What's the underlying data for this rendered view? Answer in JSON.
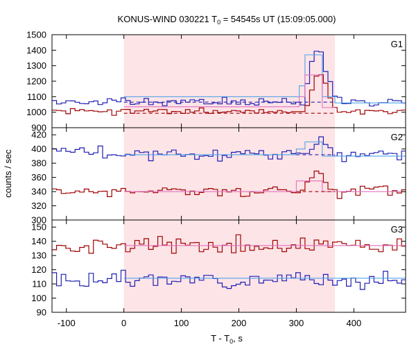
{
  "chart_data": {
    "type": "line",
    "title_main": "KONUS-WIND 030221 T",
    "title_sub": "0",
    "title_rest": " = 54545s UT (15:09:05.000)",
    "xlabel_main": "T - T",
    "xlabel_sub": "0",
    "xlabel_rest": ", s",
    "ylabel": "counts / sec",
    "xlim": [
      -125,
      490
    ],
    "xticks": [
      -100,
      0,
      100,
      200,
      300,
      400
    ],
    "shaded_interval": [
      0,
      367
    ],
    "colors": {
      "blue": "#1f1fb4",
      "red": "#a00000",
      "light_blue": "#4fa3e8",
      "pink": "#e070c0",
      "shade": "#fde4e7"
    },
    "panels": [
      {
        "label": "G1",
        "ylim": [
          900,
          1500
        ],
        "yticks": [
          900,
          1000,
          1100,
          1200,
          1300,
          1400,
          1500
        ],
        "series": [
          {
            "color": "blue",
            "base": 1065,
            "noise": 22,
            "seed": 11,
            "burst": [
              [
                310,
                120
              ],
              [
                318,
                260
              ],
              [
                326,
                330
              ],
              [
                334,
                330
              ],
              [
                342,
                230
              ],
              [
                350,
                120
              ],
              [
                358,
                45
              ]
            ]
          },
          {
            "color": "red",
            "base": 1005,
            "noise": 16,
            "seed": 23,
            "burst": [
              [
                310,
                55
              ],
              [
                318,
                160
              ],
              [
                326,
                240
              ],
              [
                334,
                260
              ],
              [
                342,
                190
              ],
              [
                350,
                90
              ],
              [
                358,
                30
              ]
            ]
          }
        ],
        "fits": [
          {
            "color": "light_blue",
            "dashed": false,
            "segments": [
              [
                0,
                305,
                1100
              ],
              [
                305,
                315,
                1170
              ],
              [
                315,
                345,
                1370
              ],
              [
                345,
                367,
                1100
              ],
              [
                367,
                490,
                1060
              ]
            ]
          },
          {
            "color": "pink",
            "dashed": false,
            "segments": [
              [
                0,
                305,
                1035
              ],
              [
                305,
                315,
                1100
              ],
              [
                315,
                345,
                1240
              ],
              [
                345,
                367,
                1030
              ]
            ]
          },
          {
            "color": "blue",
            "dashed": true,
            "segments": [
              [
                0,
                367,
                1065
              ]
            ]
          },
          {
            "color": "red",
            "dashed": true,
            "segments": [
              [
                0,
                367,
                993
              ]
            ]
          }
        ]
      },
      {
        "label": "G2",
        "ylim": [
          300,
          430
        ],
        "yticks": [
          300,
          320,
          340,
          360,
          380,
          400,
          420
        ],
        "series": [
          {
            "color": "blue",
            "base": 393,
            "noise": 7,
            "seed": 37,
            "burst": [
              [
                318,
                12
              ],
              [
                326,
                20
              ],
              [
                334,
                24
              ],
              [
                342,
                15
              ]
            ]
          },
          {
            "color": "red",
            "base": 340,
            "noise": 6,
            "seed": 41,
            "burst": [
              [
                310,
                10
              ],
              [
                318,
                22
              ],
              [
                326,
                28
              ],
              [
                334,
                25
              ],
              [
                342,
                15
              ]
            ]
          }
        ],
        "fits": [
          {
            "color": "light_blue",
            "dashed": false,
            "segments": [
              [
                0,
                300,
                392
              ],
              [
                300,
                315,
                400
              ],
              [
                315,
                345,
                410
              ],
              [
                345,
                490,
                390
              ]
            ]
          },
          {
            "color": "pink",
            "dashed": false,
            "segments": [
              [
                0,
                300,
                340
              ],
              [
                300,
                345,
                355
              ],
              [
                345,
                490,
                340
              ]
            ]
          },
          {
            "color": "blue",
            "dashed": true,
            "segments": [
              [
                300,
                367,
                392
              ]
            ]
          },
          {
            "color": "red",
            "dashed": true,
            "segments": [
              [
                300,
                367,
                340
              ]
            ]
          }
        ]
      },
      {
        "label": "G3",
        "ylim": [
          90,
          155
        ],
        "yticks": [
          90,
          100,
          110,
          120,
          130,
          140,
          150
        ],
        "series": [
          {
            "color": "red",
            "base": 137,
            "noise": 5,
            "seed": 53,
            "burst": []
          },
          {
            "color": "blue",
            "base": 113,
            "noise": 4,
            "seed": 67,
            "burst": []
          }
        ],
        "fits": [
          {
            "color": "pink",
            "dashed": false,
            "segments": [
              [
                0,
                490,
                137
              ]
            ]
          },
          {
            "color": "light_blue",
            "dashed": false,
            "segments": [
              [
                0,
                490,
                114
              ]
            ]
          }
        ]
      }
    ]
  }
}
